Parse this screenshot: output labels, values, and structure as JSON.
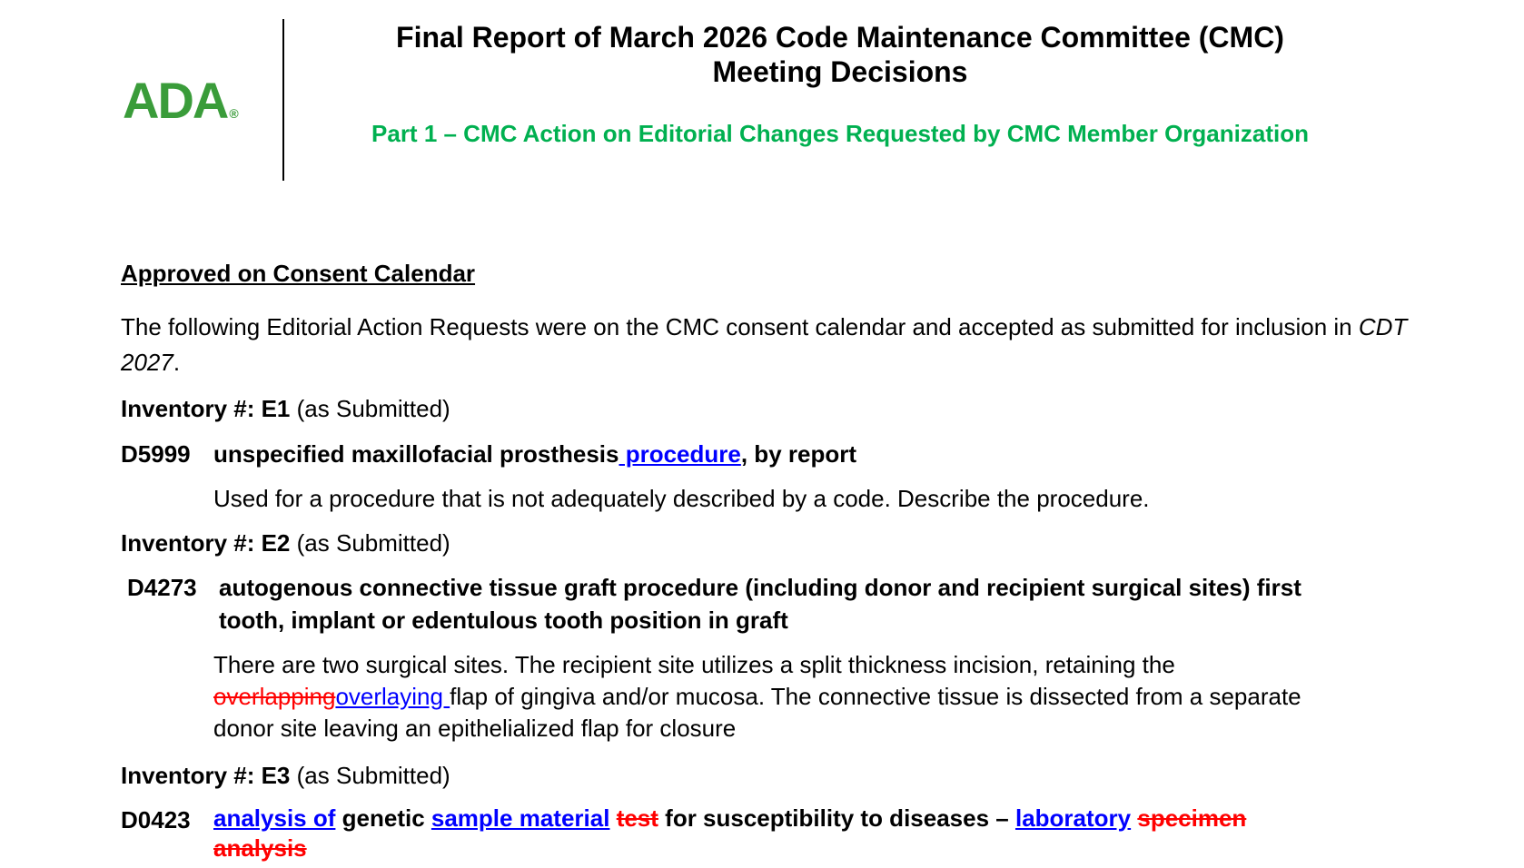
{
  "header": {
    "logo_text": "ADA",
    "logo_mark": "®",
    "title_line1": "Final Report of March 2026 Code Maintenance Committee (CMC)",
    "title_line2": "Meeting Decisions",
    "subtitle": "Part 1 – CMC Action on Editorial Changes Requested by CMC Member Organization",
    "colors": {
      "logo": "#3a9c3a",
      "subtitle": "#00b050",
      "insert": "#0000ff",
      "delete": "#ff0000"
    }
  },
  "section": {
    "heading": "Approved on Consent Calendar",
    "intro_a": "The following Editorial Action Requests were on the CMC consent calendar and accepted as submitted for inclusion in ",
    "intro_italic": "CDT 2027",
    "intro_b": "."
  },
  "items": [
    {
      "inv_label": "Inventory #: E1",
      "inv_note": " (as Submitted)",
      "code": "D5999",
      "nom_a": "unspecified maxillofacial prosthesis",
      "nom_ins": " procedure",
      "nom_b": ", by report",
      "desc": "Used for a procedure that is not adequately described by a code. Describe the procedure."
    },
    {
      "inv_label": "Inventory #: E2",
      "inv_note": " (as Submitted)",
      "code": "D4273",
      "nom_line1": "autogenous connective tissue graft procedure (including donor and recipient surgical sites) first",
      "nom_line2": "tooth, implant or edentulous tooth position in graft",
      "desc_line1": "There are two surgical sites. The recipient site utilizes a split thickness incision, retaining the",
      "desc_del": "overlapping",
      "desc_ins": "overlaying ",
      "desc_line2_rest": "flap of gingiva and/or mucosa. The connective tissue is dissected from a separate",
      "desc_line3": "donor site leaving an epithelialized flap for closure"
    },
    {
      "inv_label": "Inventory #: E3",
      "inv_note": " (as Submitted)",
      "code": "D0423",
      "ins1": "analysis of",
      "txt1": " genetic ",
      "ins2": "sample material",
      "del1": "test",
      "txt2": " for susceptibility to diseases – ",
      "ins3": "laboratory",
      "del2": "specimen",
      "del3": "analysis"
    }
  ]
}
